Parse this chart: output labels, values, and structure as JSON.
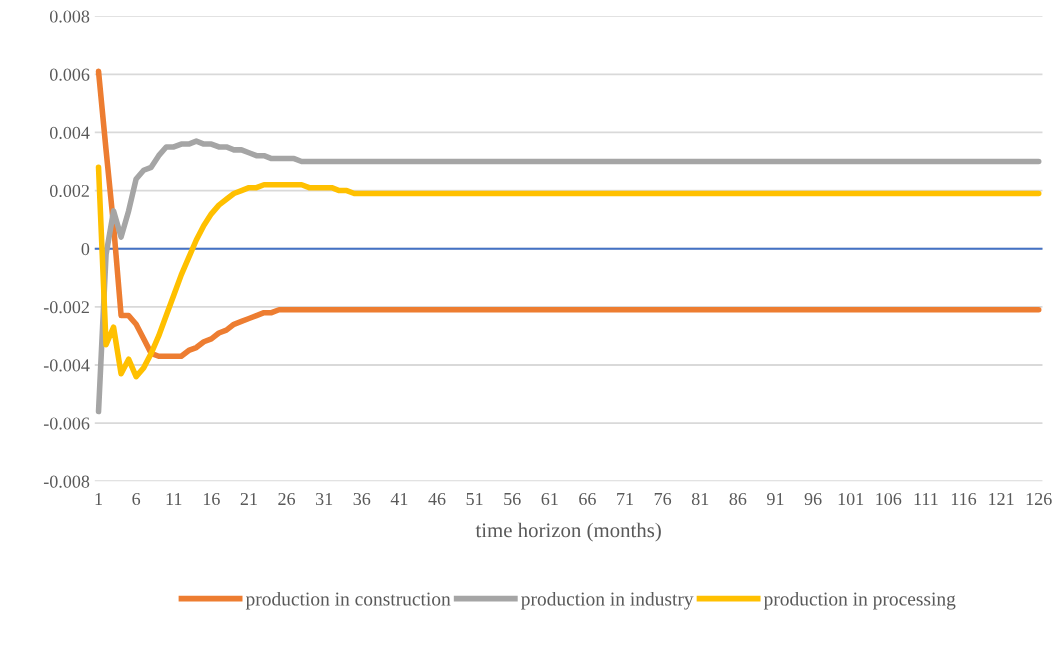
{
  "chart_data": {
    "type": "line",
    "xlabel": "time horizon (months)",
    "categories": [
      "1",
      null,
      null,
      null,
      null,
      "6",
      null,
      null,
      null,
      null,
      "11",
      null,
      null,
      null,
      null,
      "16",
      null,
      null,
      null,
      null,
      "21",
      null,
      null,
      null,
      null,
      "26",
      null,
      null,
      null,
      null,
      "31",
      null,
      null,
      null,
      null,
      "36",
      null,
      null,
      null,
      null,
      "41",
      null,
      null,
      null,
      null,
      "46",
      null,
      null,
      null,
      null,
      "51",
      null,
      null,
      null,
      null,
      "56",
      null,
      null,
      null,
      null,
      "61",
      null,
      null,
      null,
      null,
      "66",
      null,
      null,
      null,
      null,
      "71",
      null,
      null,
      null,
      null,
      "76",
      null,
      null,
      null,
      null,
      "81",
      null,
      null,
      null,
      null,
      "86",
      null,
      null,
      null,
      null,
      "91",
      null,
      null,
      null,
      null,
      "96",
      null,
      null,
      null,
      null,
      "101",
      null,
      null,
      null,
      null,
      "106",
      null,
      null,
      null,
      null,
      "111",
      null,
      null,
      null,
      null,
      "116",
      null,
      null,
      null,
      null,
      "121",
      null,
      null,
      null,
      null,
      "126"
    ],
    "series": [
      {
        "name": "production in construction",
        "color": "#ed7d31",
        "values": [
          0.0061,
          0.0034,
          0.0008,
          -0.0023,
          -0.0023,
          -0.0026,
          -0.0031,
          -0.0036,
          -0.0037,
          -0.0037,
          -0.0037,
          -0.0037,
          -0.0035,
          -0.0034,
          -0.0032,
          -0.0031,
          -0.0029,
          -0.0028,
          -0.0026,
          -0.0025,
          -0.0024,
          -0.0023,
          -0.0022,
          -0.0022,
          -0.0021,
          -0.0021,
          -0.0021,
          -0.0021,
          -0.0021,
          -0.0021,
          -0.0021,
          -0.0021,
          -0.0021,
          -0.0021,
          -0.0021,
          -0.0021,
          -0.0021,
          -0.0021,
          -0.0021,
          -0.0021,
          -0.0021,
          -0.0021,
          -0.0021,
          -0.0021,
          -0.0021,
          -0.0021,
          -0.0021,
          -0.0021,
          -0.0021,
          -0.0021,
          -0.0021,
          -0.0021,
          -0.0021,
          -0.0021,
          -0.0021,
          -0.0021,
          -0.0021,
          -0.0021,
          -0.0021,
          -0.0021,
          -0.0021,
          -0.0021,
          -0.0021,
          -0.0021,
          -0.0021,
          -0.0021,
          -0.0021,
          -0.0021,
          -0.0021,
          -0.0021,
          -0.0021,
          -0.0021,
          -0.0021,
          -0.0021,
          -0.0021,
          -0.0021,
          -0.0021,
          -0.0021,
          -0.0021,
          -0.0021,
          -0.0021,
          -0.0021,
          -0.0021,
          -0.0021,
          -0.0021,
          -0.0021,
          -0.0021,
          -0.0021,
          -0.0021,
          -0.0021,
          -0.0021,
          -0.0021,
          -0.0021,
          -0.0021,
          -0.0021,
          -0.0021,
          -0.0021,
          -0.0021,
          -0.0021,
          -0.0021,
          -0.0021,
          -0.0021,
          -0.0021,
          -0.0021,
          -0.0021,
          -0.0021,
          -0.0021,
          -0.0021,
          -0.0021,
          -0.0021,
          -0.0021,
          -0.0021,
          -0.0021,
          -0.0021,
          -0.0021,
          -0.0021,
          -0.0021,
          -0.0021,
          -0.0021,
          -0.0021,
          -0.0021,
          -0.0021,
          -0.0021,
          -0.0021,
          -0.0021,
          -0.0021
        ]
      },
      {
        "name": "production in industry",
        "color": "#a5a5a5",
        "values": [
          -0.0056,
          -0.0002,
          0.0013,
          0.0004,
          0.0013,
          0.0024,
          0.0027,
          0.0028,
          0.0032,
          0.0035,
          0.0035,
          0.0036,
          0.0036,
          0.0037,
          0.0036,
          0.0036,
          0.0035,
          0.0035,
          0.0034,
          0.0034,
          0.0033,
          0.0032,
          0.0032,
          0.0031,
          0.0031,
          0.0031,
          0.0031,
          0.003,
          0.003,
          0.003,
          0.003,
          0.003,
          0.003,
          0.003,
          0.003,
          0.003,
          0.003,
          0.003,
          0.003,
          0.003,
          0.003,
          0.003,
          0.003,
          0.003,
          0.003,
          0.003,
          0.003,
          0.003,
          0.003,
          0.003,
          0.003,
          0.003,
          0.003,
          0.003,
          0.003,
          0.003,
          0.003,
          0.003,
          0.003,
          0.003,
          0.003,
          0.003,
          0.003,
          0.003,
          0.003,
          0.003,
          0.003,
          0.003,
          0.003,
          0.003,
          0.003,
          0.003,
          0.003,
          0.003,
          0.003,
          0.003,
          0.003,
          0.003,
          0.003,
          0.003,
          0.003,
          0.003,
          0.003,
          0.003,
          0.003,
          0.003,
          0.003,
          0.003,
          0.003,
          0.003,
          0.003,
          0.003,
          0.003,
          0.003,
          0.003,
          0.003,
          0.003,
          0.003,
          0.003,
          0.003,
          0.003,
          0.003,
          0.003,
          0.003,
          0.003,
          0.003,
          0.003,
          0.003,
          0.003,
          0.003,
          0.003,
          0.003,
          0.003,
          0.003,
          0.003,
          0.003,
          0.003,
          0.003,
          0.003,
          0.003,
          0.003,
          0.003,
          0.003,
          0.003,
          0.003,
          0.003
        ]
      },
      {
        "name": "production in processing",
        "color": "#ffc000",
        "values": [
          0.0028,
          -0.0033,
          -0.0027,
          -0.0043,
          -0.0038,
          -0.0044,
          -0.0041,
          -0.0036,
          -0.003,
          -0.0023,
          -0.0016,
          -0.0009,
          -0.0003,
          0.0003,
          0.0008,
          0.0012,
          0.0015,
          0.0017,
          0.0019,
          0.002,
          0.0021,
          0.0021,
          0.0022,
          0.0022,
          0.0022,
          0.0022,
          0.0022,
          0.0022,
          0.0021,
          0.0021,
          0.0021,
          0.0021,
          0.002,
          0.002,
          0.0019,
          0.0019,
          0.0019,
          0.0019,
          0.0019,
          0.0019,
          0.0019,
          0.0019,
          0.0019,
          0.0019,
          0.0019,
          0.0019,
          0.0019,
          0.0019,
          0.0019,
          0.0019,
          0.0019,
          0.0019,
          0.0019,
          0.0019,
          0.0019,
          0.0019,
          0.0019,
          0.0019,
          0.0019,
          0.0019,
          0.0019,
          0.0019,
          0.0019,
          0.0019,
          0.0019,
          0.0019,
          0.0019,
          0.0019,
          0.0019,
          0.0019,
          0.0019,
          0.0019,
          0.0019,
          0.0019,
          0.0019,
          0.0019,
          0.0019,
          0.0019,
          0.0019,
          0.0019,
          0.0019,
          0.0019,
          0.0019,
          0.0019,
          0.0019,
          0.0019,
          0.0019,
          0.0019,
          0.0019,
          0.0019,
          0.0019,
          0.0019,
          0.0019,
          0.0019,
          0.0019,
          0.0019,
          0.0019,
          0.0019,
          0.0019,
          0.0019,
          0.0019,
          0.0019,
          0.0019,
          0.0019,
          0.0019,
          0.0019,
          0.0019,
          0.0019,
          0.0019,
          0.0019,
          0.0019,
          0.0019,
          0.0019,
          0.0019,
          0.0019,
          0.0019,
          0.0019,
          0.0019,
          0.0019,
          0.0019,
          0.0019,
          0.0019,
          0.0019,
          0.0019,
          0.0019,
          0.0019
        ]
      }
    ],
    "ylim": [
      -0.008,
      0.008
    ],
    "yticks": [
      -0.008,
      -0.006,
      -0.004,
      -0.002,
      0,
      0.002,
      0.004,
      0.006,
      0.008
    ],
    "ref_lines": [
      {
        "axis": "y",
        "value": 0,
        "color": "#4472c4"
      }
    ],
    "grid": "y",
    "legend": "bottom",
    "marker": "none",
    "line_style": "solid"
  }
}
